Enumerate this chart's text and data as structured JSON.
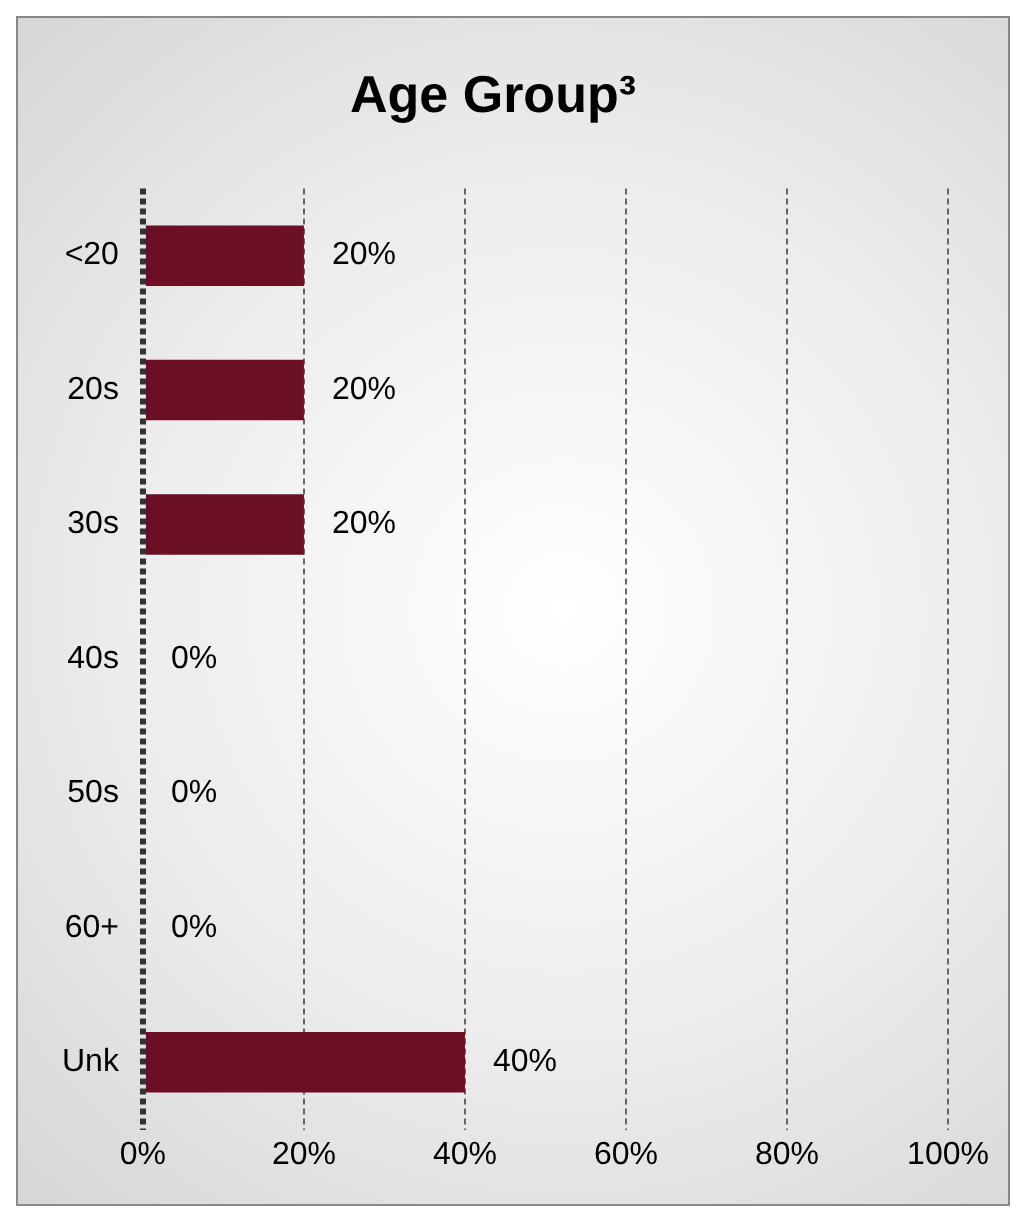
{
  "chart_data": {
    "type": "bar",
    "orientation": "horizontal",
    "title": "Age Group³",
    "categories": [
      "<20",
      "20s",
      "30s",
      "40s",
      "50s",
      "60+",
      "Unk"
    ],
    "values": [
      20,
      20,
      20,
      0,
      0,
      0,
      40
    ],
    "value_labels": [
      "20%",
      "20%",
      "20%",
      "0%",
      "0%",
      "0%",
      "40%"
    ],
    "color": "#6b0f24",
    "xlim": [
      0,
      100
    ],
    "xticks": [
      {
        "value": 0,
        "label": "0%"
      },
      {
        "value": 20,
        "label": "20%"
      },
      {
        "value": 40,
        "label": "40%"
      },
      {
        "value": 60,
        "label": "60%"
      },
      {
        "value": 80,
        "label": "80%"
      },
      {
        "value": 100,
        "label": "100%"
      }
    ],
    "grid": "x",
    "legend": false
  }
}
